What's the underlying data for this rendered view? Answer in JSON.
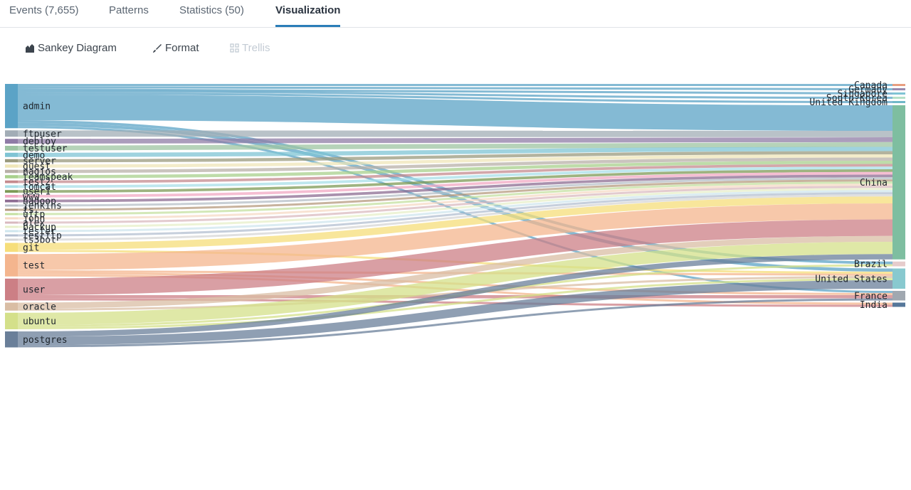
{
  "tabs": [
    {
      "label": "Events (7,655)",
      "active": false
    },
    {
      "label": "Patterns",
      "active": false
    },
    {
      "label": "Statistics (50)",
      "active": false
    },
    {
      "label": "Visualization",
      "active": true
    }
  ],
  "toolbar": {
    "sankey_label": "Sankey Diagram",
    "format_label": "Format",
    "trellis_label": "Trellis"
  },
  "icons": {
    "sankey": "sankey-icon",
    "format": "brush-icon",
    "trellis": "grid-icon"
  },
  "chart_data": {
    "type": "sankey",
    "sources": [
      {
        "name": "admin",
        "color": "#5ba3c6"
      },
      {
        "name": "ftpuser",
        "color": "#a2adb6"
      },
      {
        "name": "deploy",
        "color": "#8f7ca6"
      },
      {
        "name": "testuser",
        "color": "#9dc4a2"
      },
      {
        "name": "demo",
        "color": "#7fc4d4"
      },
      {
        "name": "server",
        "color": "#9a9a7e"
      },
      {
        "name": "guest",
        "color": "#efe6b8"
      },
      {
        "name": "nagios",
        "color": "#b8b0a8"
      },
      {
        "name": "teamspeak",
        "color": "#a8d08c"
      },
      {
        "name": "test2",
        "color": "#c48a8e"
      },
      {
        "name": "tomcat",
        "color": "#a8dfe8"
      },
      {
        "name": "user1",
        "color": "#7d9a56"
      },
      {
        "name": "www",
        "color": "#f1a8c3"
      },
      {
        "name": "hadoop",
        "color": "#8c6c92"
      },
      {
        "name": "jenkins",
        "color": "#b6bfc7"
      },
      {
        "name": "ts",
        "color": "#b59a7e"
      },
      {
        "name": "uftp",
        "color": "#c4e0a0"
      },
      {
        "name": "john",
        "color": "#f6d9c4"
      },
      {
        "name": "alex",
        "color": "#d9b9bf"
      },
      {
        "name": "backup",
        "color": "#e7efc8"
      },
      {
        "name": "tester",
        "color": "#cfe6ee"
      },
      {
        "name": "testftp",
        "color": "#b3bfd0"
      },
      {
        "name": "ts3bot",
        "color": "#d6d6d6"
      },
      {
        "name": "git",
        "color": "#f6de7a"
      },
      {
        "name": "test",
        "color": "#f4b58e"
      },
      {
        "name": "user",
        "color": "#cc7f85"
      },
      {
        "name": "oracle",
        "color": "#d9bda4"
      },
      {
        "name": "ubuntu",
        "color": "#d4e08a"
      },
      {
        "name": "postgres",
        "color": "#6a7f99"
      }
    ],
    "targets": [
      {
        "name": "Canada",
        "color": "#e89e80"
      },
      {
        "name": "Germany",
        "color": "#9a8aae"
      },
      {
        "name": "Singapore",
        "color": "#7fc4d4"
      },
      {
        "name": "South Korea",
        "color": "#b6e0c8"
      },
      {
        "name": "United Kingdom",
        "color": "#70b8c8"
      },
      {
        "name": "China",
        "color": "#7ebea0"
      },
      {
        "name": "Brazil",
        "color": "#e6cccc"
      },
      {
        "name": "United States",
        "color": "#88c9cf"
      },
      {
        "name": "France",
        "color": "#a0a8b0"
      },
      {
        "name": "India",
        "color": "#55779a"
      }
    ],
    "links": [
      {
        "source": "admin",
        "target": "Canada",
        "value": 20
      },
      {
        "source": "admin",
        "target": "Germany",
        "value": 20
      },
      {
        "source": "admin",
        "target": "Singapore",
        "value": 20
      },
      {
        "source": "admin",
        "target": "South Korea",
        "value": 20
      },
      {
        "source": "admin",
        "target": "United Kingdom",
        "value": 20
      },
      {
        "source": "admin",
        "target": "China",
        "value": 240
      },
      {
        "source": "admin",
        "target": "Brazil",
        "value": 25
      },
      {
        "source": "admin",
        "target": "United States",
        "value": 30
      },
      {
        "source": "admin",
        "target": "France",
        "value": 20
      },
      {
        "source": "ftpuser",
        "target": "China",
        "value": 60
      },
      {
        "source": "deploy",
        "target": "China",
        "value": 45
      },
      {
        "source": "testuser",
        "target": "China",
        "value": 45
      },
      {
        "source": "demo",
        "target": "China",
        "value": 40
      },
      {
        "source": "server",
        "target": "China",
        "value": 30
      },
      {
        "source": "guest",
        "target": "China",
        "value": 30
      },
      {
        "source": "nagios",
        "target": "China",
        "value": 30
      },
      {
        "source": "teamspeak",
        "target": "China",
        "value": 30
      },
      {
        "source": "test2",
        "target": "China",
        "value": 25
      },
      {
        "source": "tomcat",
        "target": "China",
        "value": 25
      },
      {
        "source": "user1",
        "target": "China",
        "value": 25
      },
      {
        "source": "www",
        "target": "China",
        "value": 25
      },
      {
        "source": "hadoop",
        "target": "China",
        "value": 25
      },
      {
        "source": "jenkins",
        "target": "China",
        "value": 20
      },
      {
        "source": "ts",
        "target": "China",
        "value": 20
      },
      {
        "source": "uftp",
        "target": "China",
        "value": 20
      },
      {
        "source": "john",
        "target": "China",
        "value": 20
      },
      {
        "source": "alex",
        "target": "China",
        "value": 20
      },
      {
        "source": "backup",
        "target": "China",
        "value": 20
      },
      {
        "source": "tester",
        "target": "China",
        "value": 20
      },
      {
        "source": "testftp",
        "target": "China",
        "value": 20
      },
      {
        "source": "ts3bot",
        "target": "China",
        "value": 20
      },
      {
        "source": "git",
        "target": "China",
        "value": 65
      },
      {
        "source": "git",
        "target": "United States",
        "value": 20
      },
      {
        "source": "test",
        "target": "China",
        "value": 150
      },
      {
        "source": "test",
        "target": "United States",
        "value": 20
      },
      {
        "source": "test",
        "target": "France",
        "value": 20
      },
      {
        "source": "test",
        "target": "India",
        "value": 20
      },
      {
        "source": "user",
        "target": "China",
        "value": 155
      },
      {
        "source": "user",
        "target": "France",
        "value": 30
      },
      {
        "source": "user",
        "target": "India",
        "value": 20
      },
      {
        "source": "oracle",
        "target": "China",
        "value": 55
      },
      {
        "source": "oracle",
        "target": "United States",
        "value": 20
      },
      {
        "source": "ubuntu",
        "target": "China",
        "value": 115
      },
      {
        "source": "ubuntu",
        "target": "Brazil",
        "value": 20
      },
      {
        "source": "ubuntu",
        "target": "United States",
        "value": 20
      },
      {
        "source": "postgres",
        "target": "China",
        "value": 50
      },
      {
        "source": "postgres",
        "target": "United States",
        "value": 80
      },
      {
        "source": "postgres",
        "target": "France",
        "value": 20
      }
    ]
  }
}
